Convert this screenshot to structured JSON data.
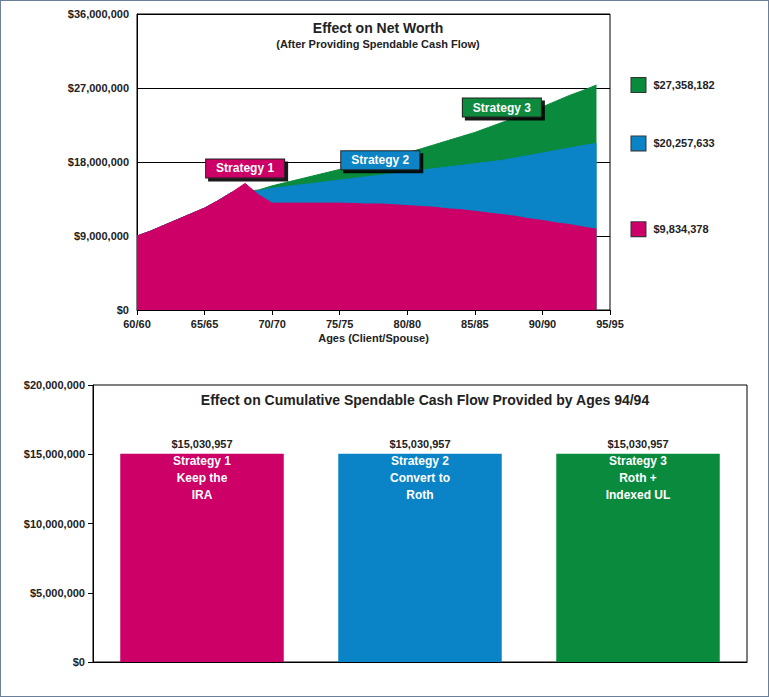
{
  "chart_data": [
    {
      "type": "area",
      "title": "Effect on Net Worth",
      "subtitle": "(After Providing Spendable Cash Flow)",
      "x_label": "Ages (Client/Spouse)",
      "x": [
        60,
        61,
        62,
        63,
        64,
        65,
        66,
        67,
        68,
        69,
        70,
        71,
        72,
        73,
        74,
        75,
        76,
        77,
        78,
        79,
        80,
        81,
        82,
        83,
        84,
        85,
        86,
        87,
        88,
        89,
        90,
        91,
        92,
        93,
        94
      ],
      "xlim": [
        60,
        95
      ],
      "xticks": [
        {
          "value": 60,
          "label": "60/60"
        },
        {
          "value": 65,
          "label": "65/65"
        },
        {
          "value": 70,
          "label": "70/70"
        },
        {
          "value": 75,
          "label": "75/75"
        },
        {
          "value": 80,
          "label": "80/80"
        },
        {
          "value": 85,
          "label": "85/85"
        },
        {
          "value": 90,
          "label": "90/90"
        },
        {
          "value": 95,
          "label": "95/95"
        }
      ],
      "ylim": [
        0,
        36000000
      ],
      "yticks": [
        {
          "value": 0,
          "label": "$0"
        },
        {
          "value": 9000000,
          "label": "$9,000,000"
        },
        {
          "value": 18000000,
          "label": "$18,000,000"
        },
        {
          "value": 27000000,
          "label": "$27,000,000"
        },
        {
          "value": 36000000,
          "label": "$36,000,000"
        }
      ],
      "grid": true,
      "stacked": false,
      "series": [
        {
          "name": "Strategy 1",
          "color": "#cc0066",
          "values": [
            9000000,
            9600000,
            10300000,
            11000000,
            11700000,
            12400000,
            13300000,
            14300000,
            15400000,
            14000000,
            13000000,
            13000000,
            13000000,
            13000000,
            13000000,
            13000000,
            12950000,
            12900000,
            12900000,
            12800000,
            12700000,
            12600000,
            12500000,
            12300000,
            12200000,
            12000000,
            11800000,
            11600000,
            11400000,
            11100000,
            10900000,
            10600000,
            10400000,
            10100000,
            9834378
          ],
          "value_labels": [
            null,
            null,
            null,
            null,
            null,
            null,
            null,
            null,
            null,
            null,
            null,
            null,
            null,
            null,
            null,
            null,
            null,
            null,
            null,
            null,
            null,
            null,
            null,
            null,
            null,
            null,
            null,
            null,
            null,
            null,
            null,
            null,
            null,
            null,
            "$9,834,378"
          ]
        },
        {
          "name": "Strategy 2",
          "color": "#0a84c6",
          "values": [
            9000000,
            9600000,
            10300000,
            11000000,
            11700000,
            12400000,
            13300000,
            14300000,
            14400000,
            14500000,
            14800000,
            15000000,
            15200000,
            15400000,
            15600000,
            15800000,
            16000000,
            16200000,
            16400000,
            16600000,
            16800000,
            17000000,
            17200000,
            17400000,
            17600000,
            17800000,
            18000000,
            18200000,
            18500000,
            18800000,
            19100000,
            19400000,
            19700000,
            20000000,
            20257633
          ],
          "value_labels": [
            null,
            null,
            null,
            null,
            null,
            null,
            null,
            null,
            null,
            null,
            null,
            null,
            null,
            null,
            null,
            null,
            null,
            null,
            null,
            null,
            null,
            null,
            null,
            null,
            null,
            null,
            null,
            null,
            null,
            null,
            null,
            null,
            null,
            null,
            "$20,257,633"
          ]
        },
        {
          "name": "Strategy 3",
          "color": "#0a8a3c",
          "values": [
            9000000,
            9600000,
            10300000,
            11000000,
            11700000,
            12400000,
            13300000,
            14300000,
            14400000,
            14600000,
            15100000,
            15500000,
            15900000,
            16300000,
            16700000,
            17100000,
            17500000,
            17900000,
            18300000,
            18700000,
            19100000,
            19600000,
            20100000,
            20600000,
            21100000,
            21600000,
            22200000,
            22800000,
            23400000,
            24000000,
            24700000,
            25400000,
            26100000,
            26700000,
            27358182
          ],
          "value_labels": [
            null,
            null,
            null,
            null,
            null,
            null,
            null,
            null,
            null,
            null,
            null,
            null,
            null,
            null,
            null,
            null,
            null,
            null,
            null,
            null,
            null,
            null,
            null,
            null,
            null,
            null,
            null,
            null,
            null,
            null,
            null,
            null,
            null,
            null,
            "$27,358,182"
          ]
        }
      ]
    },
    {
      "type": "bar",
      "title": "Effect on Cumulative Spendable Cash Flow Provided by Ages 94/94",
      "categories": [
        "Strategy 1\nKeep the\nIRA",
        "Strategy 2\nConvert to\nRoth",
        "Strategy 3\nRoth +\nIndexed UL"
      ],
      "values": [
        15030957,
        15030957,
        15030957
      ],
      "value_labels": [
        "$15,030,957",
        "$15,030,957",
        "$15,030,957"
      ],
      "colors": [
        "#cc0066",
        "#0a84c6",
        "#0a8a3c"
      ],
      "ylim": [
        0,
        20000000
      ],
      "yticks": [
        {
          "value": 0,
          "label": "$0"
        },
        {
          "value": 5000000,
          "label": "$5,000,000"
        },
        {
          "value": 10000000,
          "label": "$10,000,000"
        },
        {
          "value": 15000000,
          "label": "$15,000,000"
        },
        {
          "value": 20000000,
          "label": "$20,000,000"
        }
      ],
      "grid": false,
      "data_labels": true,
      "tick_labels": "y"
    }
  ]
}
